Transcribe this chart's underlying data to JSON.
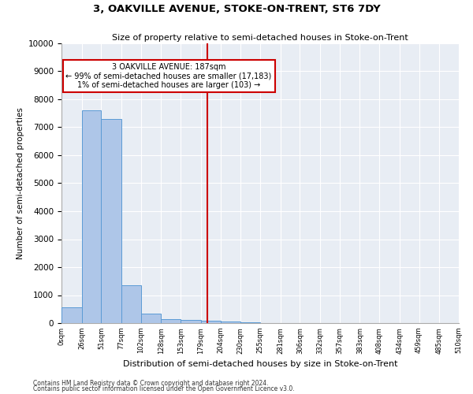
{
  "title": "3, OAKVILLE AVENUE, STOKE-ON-TRENT, ST6 7DY",
  "subtitle": "Size of property relative to semi-detached houses in Stoke-on-Trent",
  "xlabel": "Distribution of semi-detached houses by size in Stoke-on-Trent",
  "ylabel": "Number of semi-detached properties",
  "bar_color": "#aec6e8",
  "bar_edge_color": "#5b9bd5",
  "background_color": "#e8edf4",
  "fig_background_color": "#ffffff",
  "grid_color": "#ffffff",
  "property_size": 187,
  "smaller_pct": 99,
  "smaller_count": 17183,
  "larger_pct": 1,
  "larger_count": 103,
  "vline_color": "#cc0000",
  "annotation_box_color": "#ffffff",
  "annotation_box_edge": "#cc0000",
  "bin_edges": [
    0,
    26,
    51,
    77,
    102,
    128,
    153,
    179,
    204,
    230,
    255,
    281,
    306,
    332,
    357,
    383,
    408,
    434,
    459,
    485,
    510
  ],
  "bar_heights": [
    550,
    7600,
    7300,
    1350,
    330,
    150,
    100,
    95,
    55,
    20,
    8,
    4,
    2,
    1,
    1,
    0,
    0,
    0,
    0,
    0
  ],
  "ylim": [
    0,
    10000
  ],
  "yticks": [
    0,
    1000,
    2000,
    3000,
    4000,
    5000,
    6000,
    7000,
    8000,
    9000,
    10000
  ],
  "footnote1": "Contains HM Land Registry data © Crown copyright and database right 2024.",
  "footnote2": "Contains public sector information licensed under the Open Government Licence v3.0."
}
